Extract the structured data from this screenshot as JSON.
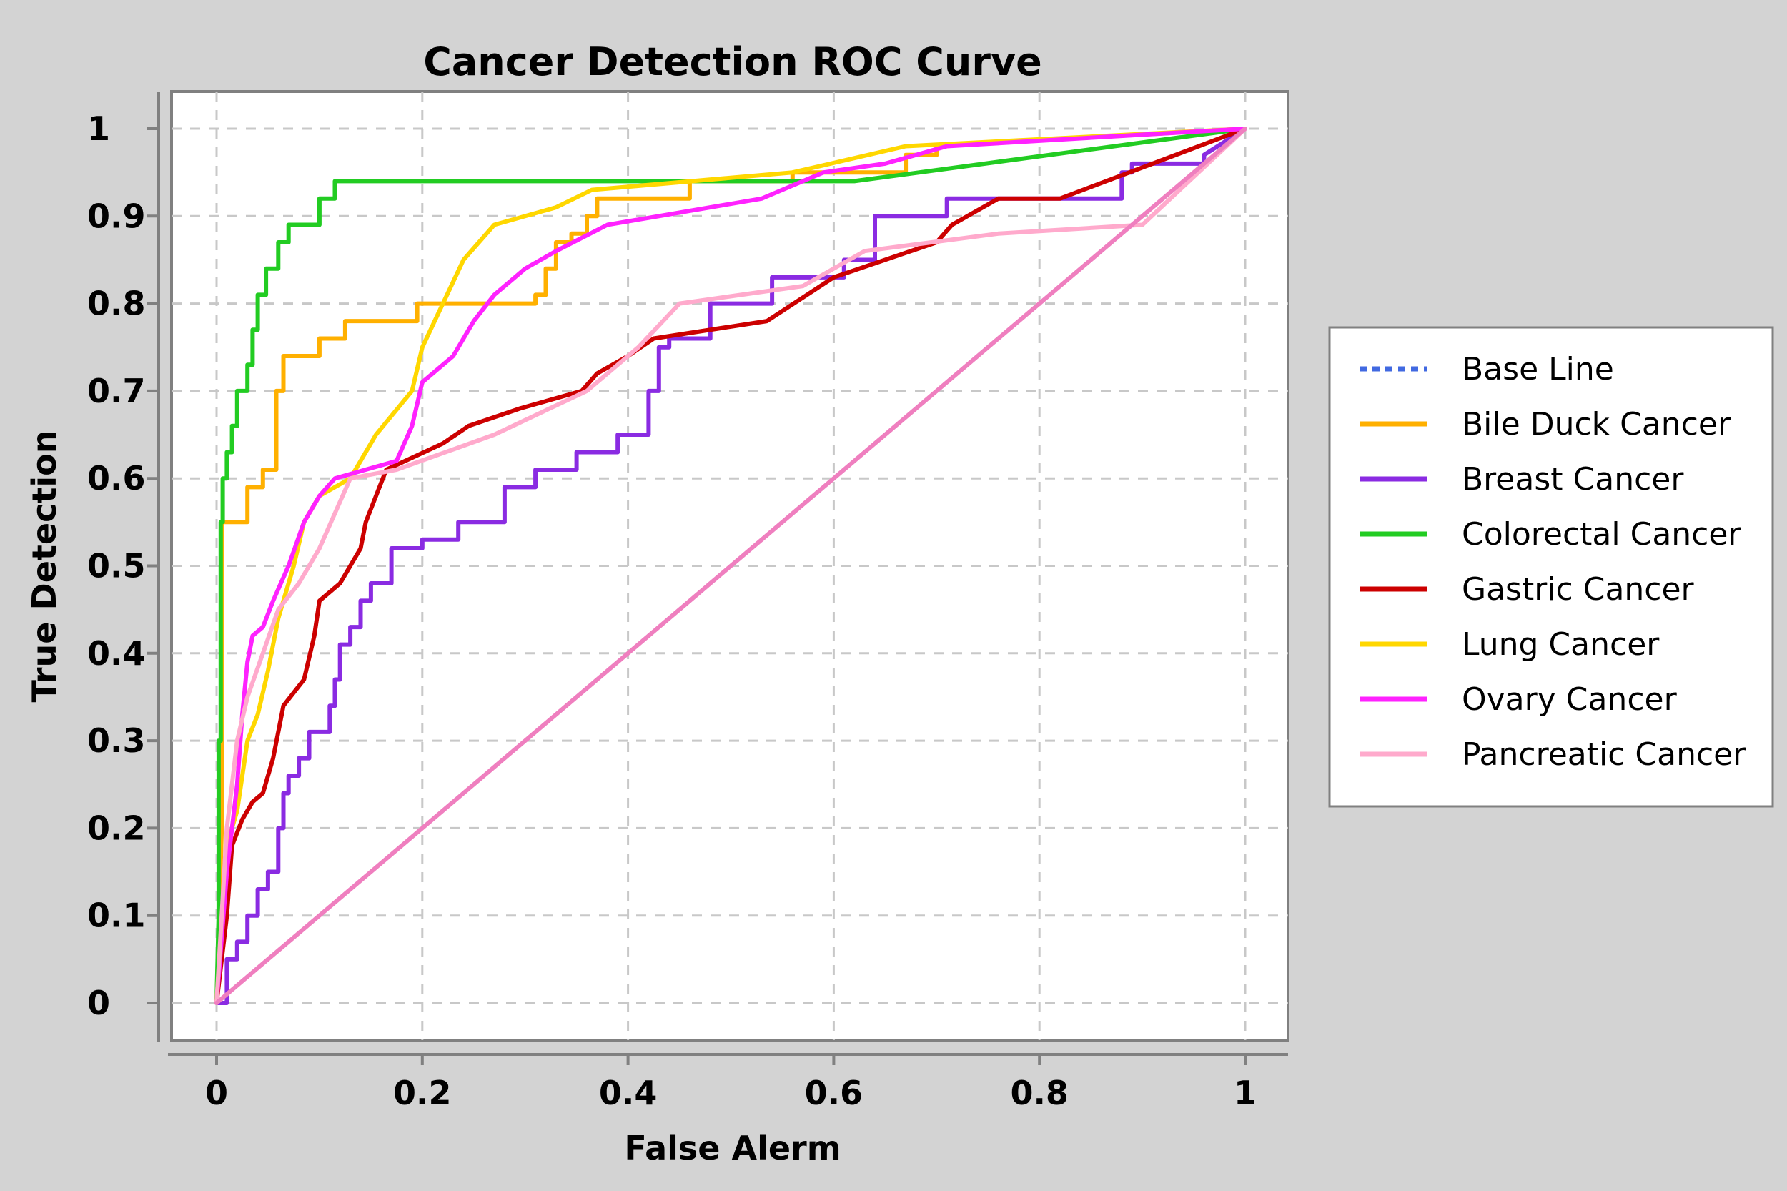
{
  "chart_data": {
    "type": "line",
    "title": "Cancer Detection ROC Curve",
    "xlabel": "False Alerm",
    "ylabel": "True Detection",
    "xlim": [
      0,
      1
    ],
    "ylim": [
      0,
      1
    ],
    "xticks": [
      "0",
      "0.2",
      "0.4",
      "0.6",
      "0.8",
      "1"
    ],
    "yticks": [
      "0",
      "0.1",
      "0.2",
      "0.3",
      "0.4",
      "0.5",
      "0.6",
      "0.7",
      "0.8",
      "0.9",
      "1"
    ],
    "grid": true,
    "legend_position": "right",
    "series": [
      {
        "name": "Base Line",
        "color": "#4169e1",
        "dashed": true,
        "x": [
          0,
          1
        ],
        "y": [
          0,
          1
        ]
      },
      {
        "name": "Bile Duck Cancer",
        "color": "#ffb000",
        "x": [
          0,
          0.005,
          0.005,
          0.012,
          0.012,
          0.03,
          0.03,
          0.045,
          0.045,
          0.058,
          0.058,
          0.065,
          0.065,
          0.1,
          0.1,
          0.125,
          0.125,
          0.195,
          0.195,
          0.31,
          0.31,
          0.32,
          0.32,
          0.33,
          0.33,
          0.345,
          0.345,
          0.36,
          0.36,
          0.37,
          0.37,
          0.46,
          0.46,
          0.52,
          0.52,
          0.56,
          0.56,
          0.67,
          0.67,
          0.7,
          0.7,
          1
        ],
        "y": [
          0,
          0.2,
          0.55,
          0.55,
          0.55,
          0.55,
          0.59,
          0.59,
          0.61,
          0.61,
          0.7,
          0.7,
          0.74,
          0.74,
          0.76,
          0.76,
          0.78,
          0.78,
          0.8,
          0.8,
          0.81,
          0.81,
          0.84,
          0.84,
          0.87,
          0.87,
          0.88,
          0.88,
          0.9,
          0.9,
          0.92,
          0.92,
          0.94,
          0.94,
          0.94,
          0.94,
          0.95,
          0.95,
          0.97,
          0.97,
          0.98,
          1
        ]
      },
      {
        "name": "Breast Cancer",
        "color": "#8a2be2",
        "x": [
          0,
          0.01,
          0.01,
          0.02,
          0.02,
          0.03,
          0.03,
          0.04,
          0.04,
          0.05,
          0.05,
          0.06,
          0.06,
          0.065,
          0.065,
          0.07,
          0.07,
          0.08,
          0.08,
          0.09,
          0.09,
          0.11,
          0.11,
          0.115,
          0.115,
          0.12,
          0.12,
          0.13,
          0.13,
          0.14,
          0.14,
          0.15,
          0.15,
          0.17,
          0.17,
          0.2,
          0.2,
          0.235,
          0.235,
          0.28,
          0.28,
          0.31,
          0.31,
          0.35,
          0.35,
          0.39,
          0.39,
          0.42,
          0.42,
          0.43,
          0.43,
          0.44,
          0.44,
          0.48,
          0.48,
          0.54,
          0.54,
          0.61,
          0.61,
          0.64,
          0.64,
          0.71,
          0.71,
          0.88,
          0.88,
          0.89,
          0.89,
          0.96,
          0.96,
          1
        ],
        "y": [
          0,
          0,
          0.05,
          0.05,
          0.07,
          0.07,
          0.1,
          0.1,
          0.13,
          0.13,
          0.15,
          0.15,
          0.2,
          0.2,
          0.24,
          0.24,
          0.26,
          0.26,
          0.28,
          0.28,
          0.31,
          0.31,
          0.34,
          0.34,
          0.37,
          0.37,
          0.41,
          0.41,
          0.43,
          0.43,
          0.46,
          0.46,
          0.48,
          0.48,
          0.52,
          0.52,
          0.53,
          0.53,
          0.55,
          0.55,
          0.59,
          0.59,
          0.61,
          0.61,
          0.63,
          0.63,
          0.65,
          0.65,
          0.7,
          0.7,
          0.75,
          0.75,
          0.76,
          0.76,
          0.8,
          0.8,
          0.83,
          0.83,
          0.85,
          0.85,
          0.9,
          0.9,
          0.92,
          0.92,
          0.95,
          0.95,
          0.96,
          0.96,
          0.97,
          1
        ]
      },
      {
        "name": "Colorectal Cancer",
        "color": "#22cc22",
        "x": [
          0,
          0.002,
          0.002,
          0.004,
          0.004,
          0.006,
          0.006,
          0.01,
          0.01,
          0.015,
          0.015,
          0.02,
          0.02,
          0.03,
          0.03,
          0.035,
          0.035,
          0.04,
          0.04,
          0.048,
          0.048,
          0.06,
          0.06,
          0.07,
          0.07,
          0.1,
          0.1,
          0.115,
          0.115,
          0.62,
          1
        ],
        "y": [
          0,
          0.1,
          0.3,
          0.3,
          0.55,
          0.55,
          0.6,
          0.6,
          0.63,
          0.63,
          0.66,
          0.66,
          0.7,
          0.7,
          0.73,
          0.73,
          0.77,
          0.77,
          0.81,
          0.81,
          0.84,
          0.84,
          0.87,
          0.87,
          0.89,
          0.89,
          0.92,
          0.92,
          0.94,
          0.94,
          1
        ]
      },
      {
        "name": "Gastric Cancer",
        "color": "#cc0000",
        "x": [
          0,
          0.01,
          0.01,
          0.015,
          0.015,
          0.025,
          0.025,
          0.035,
          0.035,
          0.045,
          0.045,
          0.055,
          0.055,
          0.065,
          0.065,
          0.085,
          0.085,
          0.095,
          0.095,
          0.1,
          0.1,
          0.12,
          0.12,
          0.13,
          0.13,
          0.14,
          0.14,
          0.145,
          0.145,
          0.165,
          0.165,
          0.22,
          0.22,
          0.245,
          0.245,
          0.27,
          0.27,
          0.295,
          0.295,
          0.355,
          0.355,
          0.37,
          0.37,
          0.4,
          0.4,
          0.425,
          0.425,
          0.535,
          0.535,
          0.6,
          0.6,
          0.7,
          0.7,
          0.715,
          0.715,
          0.76,
          0.76,
          0.82,
          1
        ],
        "y": [
          0,
          0.1,
          0.1,
          0.18,
          0.18,
          0.21,
          0.21,
          0.23,
          0.23,
          0.24,
          0.24,
          0.28,
          0.28,
          0.34,
          0.34,
          0.37,
          0.37,
          0.42,
          0.42,
          0.46,
          0.46,
          0.48,
          0.48,
          0.5,
          0.5,
          0.52,
          0.52,
          0.55,
          0.55,
          0.61,
          0.61,
          0.64,
          0.64,
          0.66,
          0.66,
          0.67,
          0.67,
          0.68,
          0.68,
          0.7,
          0.7,
          0.72,
          0.72,
          0.74,
          0.74,
          0.76,
          0.76,
          0.78,
          0.78,
          0.83,
          0.83,
          0.87,
          0.87,
          0.89,
          0.89,
          0.92,
          0.92,
          0.92,
          1
        ]
      },
      {
        "name": "Lung Cancer",
        "color": "#ffd700",
        "x": [
          0,
          0.01,
          0.01,
          0.02,
          0.02,
          0.03,
          0.03,
          0.04,
          0.04,
          0.05,
          0.05,
          0.06,
          0.06,
          0.075,
          0.075,
          0.085,
          0.085,
          0.1,
          0.1,
          0.13,
          0.13,
          0.14,
          0.14,
          0.155,
          0.155,
          0.19,
          0.19,
          0.2,
          0.2,
          0.22,
          0.22,
          0.24,
          0.24,
          0.27,
          0.27,
          0.33,
          0.33,
          0.365,
          0.365,
          0.56,
          0.56,
          0.67,
          1
        ],
        "y": [
          0,
          0.18,
          0.18,
          0.22,
          0.22,
          0.3,
          0.3,
          0.33,
          0.33,
          0.38,
          0.38,
          0.44,
          0.44,
          0.5,
          0.5,
          0.55,
          0.55,
          0.58,
          0.58,
          0.6,
          0.6,
          0.62,
          0.62,
          0.65,
          0.65,
          0.7,
          0.7,
          0.75,
          0.75,
          0.8,
          0.8,
          0.85,
          0.85,
          0.89,
          0.89,
          0.91,
          0.91,
          0.93,
          0.93,
          0.95,
          0.95,
          0.98,
          1
        ]
      },
      {
        "name": "Ovary Cancer",
        "color": "#ff22ff",
        "x": [
          0,
          0.01,
          0.01,
          0.02,
          0.02,
          0.025,
          0.025,
          0.03,
          0.03,
          0.035,
          0.035,
          0.045,
          0.045,
          0.055,
          0.055,
          0.07,
          0.07,
          0.085,
          0.085,
          0.1,
          0.1,
          0.115,
          0.115,
          0.175,
          0.175,
          0.19,
          0.19,
          0.2,
          0.2,
          0.23,
          0.23,
          0.25,
          0.25,
          0.27,
          0.27,
          0.3,
          0.3,
          0.33,
          0.33,
          0.38,
          0.38,
          0.43,
          0.43,
          0.53,
          0.53,
          0.59,
          0.59,
          0.65,
          0.65,
          0.71,
          1
        ],
        "y": [
          0,
          0.15,
          0.15,
          0.25,
          0.25,
          0.33,
          0.33,
          0.39,
          0.39,
          0.42,
          0.42,
          0.43,
          0.43,
          0.46,
          0.46,
          0.5,
          0.5,
          0.55,
          0.55,
          0.58,
          0.58,
          0.6,
          0.6,
          0.62,
          0.62,
          0.66,
          0.66,
          0.71,
          0.71,
          0.74,
          0.74,
          0.78,
          0.78,
          0.81,
          0.81,
          0.84,
          0.84,
          0.86,
          0.86,
          0.89,
          0.89,
          0.9,
          0.9,
          0.92,
          0.92,
          0.95,
          0.95,
          0.96,
          0.96,
          0.98,
          1
        ]
      },
      {
        "name": "Pancreatic Cancer",
        "color": "#ffaacc",
        "x": [
          0,
          0.005,
          0.005,
          0.01,
          0.01,
          0.02,
          0.02,
          0.03,
          0.03,
          0.045,
          0.045,
          0.06,
          0.06,
          0.08,
          0.08,
          0.1,
          0.1,
          0.115,
          0.115,
          0.13,
          0.13,
          0.175,
          0.175,
          0.27,
          0.27,
          0.36,
          0.36,
          0.41,
          0.41,
          0.45,
          0.45,
          0.57,
          0.57,
          0.63,
          0.63,
          0.76,
          0.76,
          0.9,
          1
        ],
        "y": [
          0,
          0.1,
          0.1,
          0.2,
          0.2,
          0.3,
          0.3,
          0.35,
          0.35,
          0.4,
          0.4,
          0.45,
          0.45,
          0.48,
          0.48,
          0.52,
          0.52,
          0.56,
          0.56,
          0.6,
          0.6,
          0.61,
          0.61,
          0.65,
          0.65,
          0.7,
          0.7,
          0.75,
          0.75,
          0.8,
          0.8,
          0.82,
          0.82,
          0.86,
          0.86,
          0.88,
          0.88,
          0.89,
          1
        ]
      },
      {
        "name": "",
        "color": "#ef7fbf",
        "x": [
          0,
          1
        ],
        "y": [
          0,
          1
        ]
      }
    ]
  }
}
